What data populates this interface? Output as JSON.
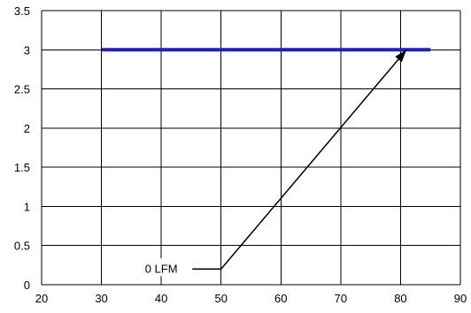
{
  "chart_data": {
    "type": "line",
    "title": "",
    "xlabel": "",
    "ylabel": "",
    "xlim": [
      20,
      90
    ],
    "ylim": [
      0,
      3.5
    ],
    "x_ticks": [
      20,
      30,
      40,
      50,
      60,
      70,
      80,
      90
    ],
    "x_tick_labels": [
      "20",
      "30",
      "40",
      "50",
      "60",
      "70",
      "80",
      "90"
    ],
    "y_ticks": [
      0,
      0.5,
      1,
      1.5,
      2,
      2.5,
      3,
      3.5
    ],
    "y_tick_labels": [
      "0",
      "0.5",
      "1",
      "1.5",
      "2",
      "2.5",
      "3",
      "3.5"
    ],
    "grid": true,
    "legend": "none",
    "series": [
      {
        "x": [
          30,
          85
        ],
        "y": [
          3,
          3
        ],
        "color": "#1f1fc8"
      }
    ],
    "annotations": [
      {
        "text": "0 LFM",
        "label_at": [
          40,
          0.2
        ],
        "path": [
          [
            42,
            0.2
          ],
          [
            50,
            0.2
          ],
          [
            81,
            3
          ]
        ],
        "arrowhead": true,
        "color": "#000000"
      }
    ]
  }
}
